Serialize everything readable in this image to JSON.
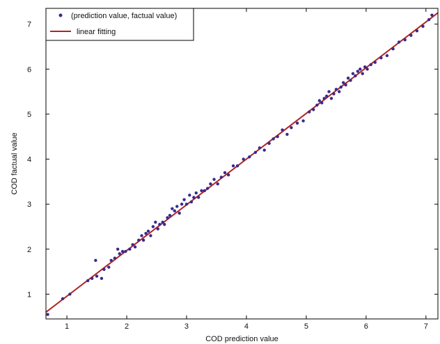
{
  "chart_data": {
    "type": "scatter",
    "xlabel": "COD prediction value",
    "ylabel": "COD factual value",
    "xlim": [
      0.65,
      7.2
    ],
    "ylim": [
      0.45,
      7.35
    ],
    "xticks": [
      1,
      2,
      3,
      4,
      5,
      6,
      7
    ],
    "yticks": [
      1,
      2,
      3,
      4,
      5,
      6,
      7
    ],
    "grid": false,
    "legend_position": "top-left",
    "series": [
      {
        "name": "(prediction value, factual value)",
        "kind": "scatter",
        "color": "#3a2a8a",
        "x": [
          0.68,
          0.93,
          1.05,
          1.35,
          1.42,
          1.48,
          1.5,
          1.58,
          1.62,
          1.7,
          1.74,
          1.8,
          1.85,
          1.88,
          1.93,
          1.98,
          2.05,
          2.1,
          2.14,
          2.2,
          2.25,
          2.28,
          2.32,
          2.36,
          2.4,
          2.44,
          2.48,
          2.52,
          2.55,
          2.6,
          2.63,
          2.68,
          2.72,
          2.76,
          2.8,
          2.84,
          2.88,
          2.92,
          2.96,
          3.0,
          3.05,
          3.08,
          3.12,
          3.16,
          3.2,
          3.25,
          3.3,
          3.35,
          3.4,
          3.46,
          3.52,
          3.58,
          3.64,
          3.7,
          3.78,
          3.85,
          3.95,
          4.05,
          4.15,
          4.22,
          4.3,
          4.38,
          4.45,
          4.52,
          4.6,
          4.68,
          4.75,
          4.85,
          4.95,
          5.05,
          5.12,
          5.18,
          5.22,
          5.26,
          5.3,
          5.34,
          5.38,
          5.42,
          5.46,
          5.5,
          5.55,
          5.58,
          5.62,
          5.66,
          5.7,
          5.74,
          5.78,
          5.82,
          5.86,
          5.9,
          5.94,
          5.98,
          6.02,
          6.08,
          6.15,
          6.25,
          6.35,
          6.45,
          6.55,
          6.65,
          6.75,
          6.85,
          6.95,
          7.05,
          7.1
        ],
        "y": [
          0.55,
          0.9,
          1.0,
          1.3,
          1.35,
          1.75,
          1.4,
          1.35,
          1.55,
          1.6,
          1.75,
          1.8,
          2.0,
          1.9,
          1.95,
          1.95,
          2.0,
          2.1,
          2.05,
          2.2,
          2.3,
          2.2,
          2.35,
          2.4,
          2.3,
          2.5,
          2.6,
          2.45,
          2.55,
          2.6,
          2.55,
          2.7,
          2.75,
          2.9,
          2.85,
          2.95,
          2.8,
          3.0,
          3.1,
          3.0,
          3.2,
          3.05,
          3.15,
          3.25,
          3.15,
          3.3,
          3.3,
          3.35,
          3.45,
          3.55,
          3.45,
          3.6,
          3.7,
          3.65,
          3.85,
          3.85,
          4.0,
          4.05,
          4.15,
          4.25,
          4.2,
          4.35,
          4.45,
          4.5,
          4.65,
          4.55,
          4.7,
          4.8,
          4.85,
          5.05,
          5.1,
          5.2,
          5.3,
          5.25,
          5.35,
          5.4,
          5.5,
          5.35,
          5.45,
          5.55,
          5.5,
          5.6,
          5.7,
          5.65,
          5.8,
          5.75,
          5.9,
          5.85,
          5.95,
          6.0,
          5.9,
          6.05,
          6.0,
          6.1,
          6.15,
          6.25,
          6.3,
          6.45,
          6.6,
          6.65,
          6.75,
          6.85,
          6.95,
          7.1,
          7.2
        ]
      },
      {
        "name": "linear fitting",
        "kind": "line",
        "color": "#b02424",
        "x": [
          0.65,
          7.2
        ],
        "y": [
          0.6,
          7.25
        ]
      }
    ]
  }
}
